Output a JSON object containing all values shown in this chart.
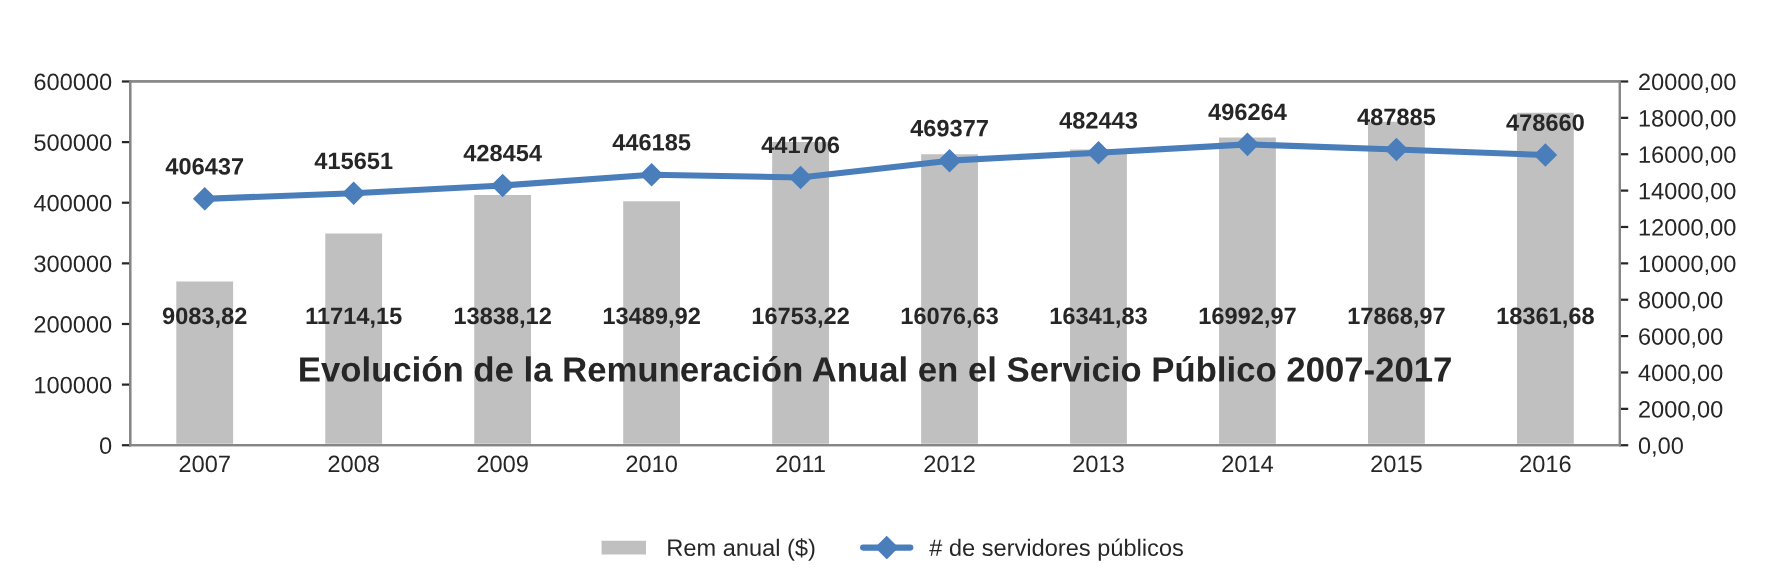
{
  "chart_data": {
    "type": "bar",
    "title": "Evolución de la Remuneración Anual en el Servicio Público 2007-2017",
    "categories": [
      "2007",
      "2008",
      "2009",
      "2010",
      "2011",
      "2012",
      "2013",
      "2014",
      "2015",
      "2016"
    ],
    "series": [
      {
        "name": "Rem anual ($)",
        "axis": "y2",
        "color": "#c0c0c0",
        "values": [
          9083.82,
          11714.15,
          13838.12,
          13489.92,
          16753.22,
          16076.63,
          16341.83,
          16992.97,
          17868.97,
          18361.68
        ],
        "value_labels": [
          "9083,82",
          "11714,15",
          "13838,12",
          "13489,92",
          "16753,22",
          "16076,63",
          "16341,83",
          "16992,97",
          "17868,97",
          "18361,68"
        ]
      },
      {
        "name": "# de servidores públicos",
        "type": "line",
        "color": "#4a7ebb",
        "marker": "diamond",
        "values": [
          406437,
          415651,
          428454,
          446185,
          441706,
          469377,
          482443,
          496264,
          487885,
          478660
        ],
        "value_labels": [
          "406437",
          "415651",
          "428454",
          "446185",
          "441706",
          "469377",
          "482443",
          "496264",
          "487885",
          "478660"
        ]
      }
    ],
    "ylim": [
      0,
      600000
    ],
    "yticks": [
      0,
      100000,
      200000,
      300000,
      400000,
      500000,
      600000
    ],
    "y2lim": [
      0,
      20000
    ],
    "y2ticks": [
      {
        "value": 0,
        "label": "0,00"
      },
      {
        "value": 2000,
        "label": "2000,00"
      },
      {
        "value": 4000,
        "label": "4000,00"
      },
      {
        "value": 6000,
        "label": "6000,00"
      },
      {
        "value": 8000,
        "label": "8000,00"
      },
      {
        "value": 10000,
        "label": "10000,00"
      },
      {
        "value": 12000,
        "label": "12000,00"
      },
      {
        "value": 14000,
        "label": "14000,00"
      },
      {
        "value": 16000,
        "label": "16000,00"
      },
      {
        "value": 18000,
        "label": "18000,00"
      },
      {
        "value": 20000,
        "label": "20000,00"
      }
    ],
    "grid": false,
    "legend": "bottom"
  }
}
